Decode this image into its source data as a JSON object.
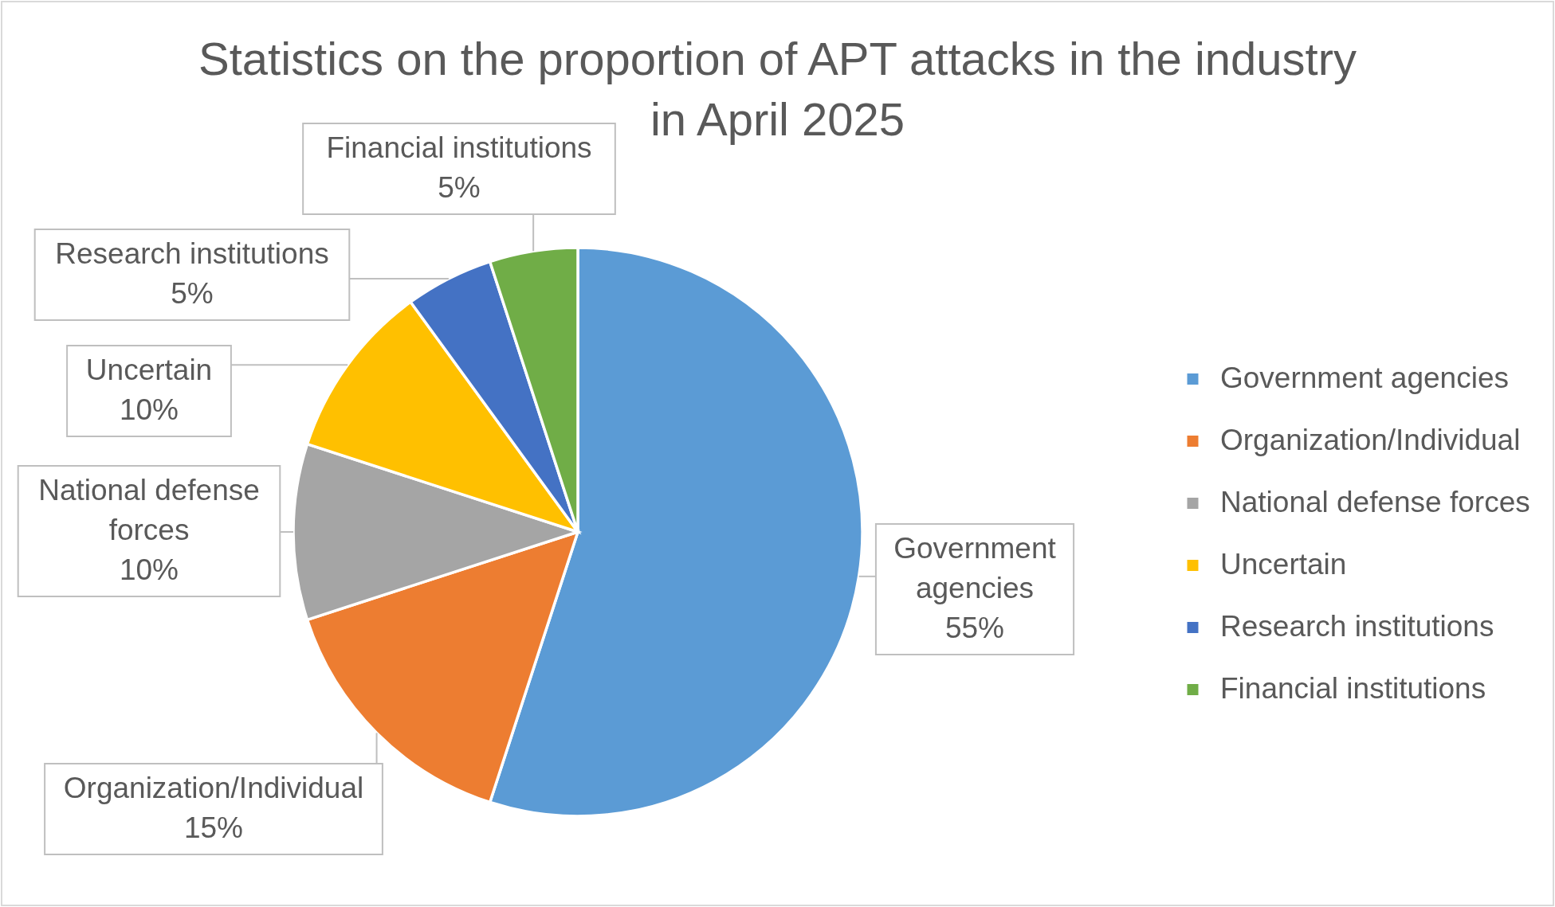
{
  "chart_data": {
    "type": "pie",
    "title": "Statistics on the proportion of APT attacks in the industry in April 2025",
    "categories": [
      "Government agencies",
      "Organization/Individual",
      "National defense forces",
      "Uncertain",
      "Research institutions",
      "Financial institutions"
    ],
    "values": [
      55,
      15,
      10,
      10,
      5,
      5
    ],
    "colors": [
      "#5b9bd5",
      "#ed7d31",
      "#a5a5a5",
      "#ffc000",
      "#4472c4",
      "#70ad47"
    ],
    "value_labels": [
      "55%",
      "15%",
      "10%",
      "10%",
      "5%",
      "5%"
    ],
    "legend": "right"
  }
}
